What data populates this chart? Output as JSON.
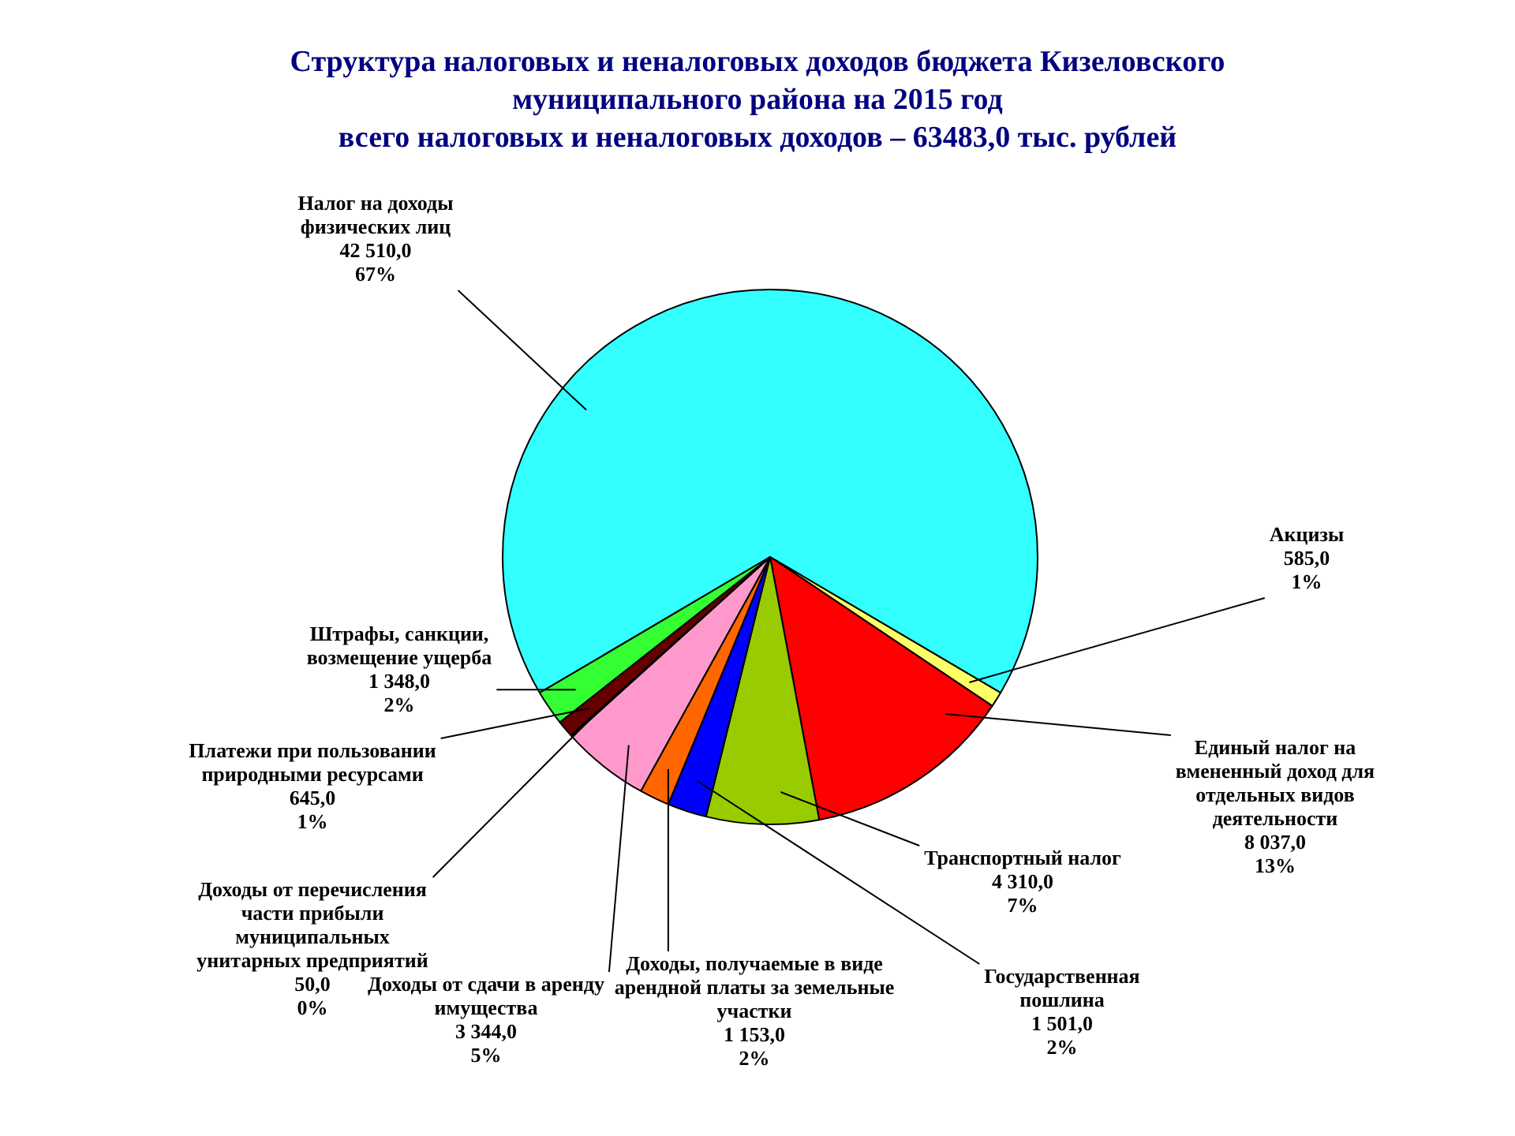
{
  "chart_data": {
    "type": "pie",
    "title": "Структура налоговых и неналоговых доходов бюджета Кизеловского муниципального района на 2015 год",
    "subtitle": "всего налоговых и неналоговых доходов – 63483,0 тыс. рублей",
    "categories": [
      "Налог на доходы физических лиц",
      "Акцизы",
      "Единый налог на вмененный доход для отдельных видов деятельности",
      "Транспортный налог",
      "Государственная пошлина",
      "Доходы, получаемые в виде арендной платы за земельные участки",
      "Доходы от сдачи в аренду имущества",
      "Доходы от перечисления части прибыли муниципальных унитарных предприятий",
      "Платежи при пользовании природными ресурсами",
      "Штрафы, санкции, возмещение ущерба"
    ],
    "values": [
      42510,
      585,
      8037,
      4310,
      1501,
      1153,
      3344,
      50,
      645,
      1348
    ],
    "value_labels": [
      "42 510,0\n67%",
      "585,0\n1%",
      "8 037,0\n13%",
      "4 310,0\n7%",
      "1 501,0\n2%",
      "1 153,0\n2%",
      "3 344,0\n5%",
      "50,0\n0%",
      "645,0\n1%",
      "1 348,0\n2%"
    ],
    "colors": [
      "#33ffff",
      "#ffff66",
      "#ff0000",
      "#99cc00",
      "#0000ff",
      "#ff6600",
      "#ff99cc",
      "#c0c0c0",
      "#660000",
      "#33ff33"
    ]
  }
}
